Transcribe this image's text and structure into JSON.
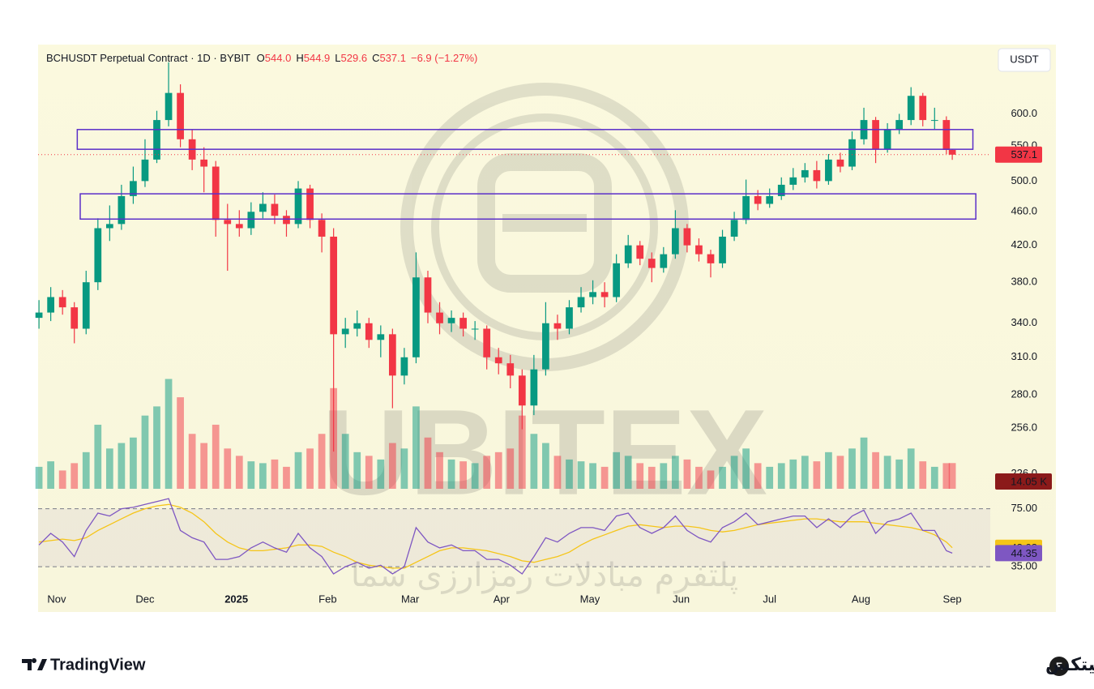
{
  "chart_data": {
    "type": "candlestick",
    "legend": {
      "symbol": "BCHUSDT Perpetual Contract · 1D · BYBIT",
      "fields": [
        {
          "label": "O",
          "value": "544.0"
        },
        {
          "label": "H",
          "value": "544.9"
        },
        {
          "label": "L",
          "value": "529.6"
        },
        {
          "label": "C",
          "value": "537.1"
        }
      ],
      "change": "−6.9 (−1.27%)"
    },
    "currency_button": "USDT",
    "log_scale": true,
    "up_color": "#089981",
    "down_color": "#f23645",
    "zone_color": "#5b2fc9",
    "rsi_color": "#7e57c2",
    "rsi_ma_color": "#f5c518",
    "xlim": [
      -6.3,
      316.9
    ],
    "xticks": [
      {
        "value": 0,
        "label": "Nov"
      },
      {
        "value": 30,
        "label": "Dec"
      },
      {
        "value": 61,
        "label": "2025"
      },
      {
        "value": 92,
        "label": "Feb"
      },
      {
        "value": 120,
        "label": "Mar"
      },
      {
        "value": 151,
        "label": "Apr"
      },
      {
        "value": 181,
        "label": "May"
      },
      {
        "value": 212,
        "label": "Jun"
      },
      {
        "value": 242,
        "label": "Jul"
      },
      {
        "value": 273,
        "label": "Aug"
      },
      {
        "value": 304,
        "label": "Sep"
      }
    ],
    "ylim": [
      217,
      724
    ],
    "yticks": [
      {
        "value": 600,
        "label": "600.0"
      },
      {
        "value": 550,
        "label": "550.0"
      },
      {
        "value": 500,
        "label": "500.0"
      },
      {
        "value": 460,
        "label": "460.0"
      },
      {
        "value": 420,
        "label": "420.0"
      },
      {
        "value": 380,
        "label": "380.0"
      },
      {
        "value": 340,
        "label": "340.0"
      },
      {
        "value": 310,
        "label": "310.0"
      },
      {
        "value": 280,
        "label": "280.0"
      },
      {
        "value": 256,
        "label": "256.0"
      },
      {
        "value": 226,
        "label": "226.0"
      }
    ],
    "volume_ylim": [
      0,
      62
    ],
    "rsi_ylim": [
      30,
      86
    ],
    "rsi_yticks": [
      {
        "value": 75,
        "label": "75.00"
      },
      {
        "value": 35,
        "label": "35.00"
      }
    ],
    "zones": [
      {
        "x": [
          7,
          311
        ],
        "y": [
          545,
          575
        ]
      },
      {
        "x": [
          8,
          312
        ],
        "y": [
          451,
          483
        ]
      }
    ],
    "candles": {
      "x": [
        -6,
        -2,
        2,
        6,
        10,
        14,
        18,
        22,
        26,
        30,
        34,
        38,
        42,
        46,
        50,
        54,
        58,
        62,
        66,
        70,
        74,
        78,
        82,
        86,
        90,
        94,
        98,
        102,
        106,
        110,
        114,
        118,
        122,
        126,
        130,
        134,
        138,
        142,
        146,
        150,
        154,
        158,
        162,
        166,
        170,
        174,
        178,
        182,
        186,
        190,
        194,
        198,
        202,
        206,
        210,
        214,
        218,
        222,
        226,
        230,
        234,
        238,
        242,
        246,
        250,
        254,
        258,
        262,
        266,
        270,
        274,
        278,
        282,
        286,
        290,
        294,
        298,
        302,
        304
      ],
      "open": [
        345,
        350,
        365,
        355,
        335,
        380,
        440,
        445,
        480,
        500,
        530,
        590,
        635,
        560,
        530,
        520,
        450,
        445,
        440,
        460,
        470,
        455,
        445,
        490,
        450,
        430,
        330,
        335,
        340,
        325,
        330,
        295,
        310,
        385,
        350,
        340,
        345,
        335,
        335,
        310,
        305,
        295,
        272,
        300,
        340,
        335,
        355,
        365,
        370,
        365,
        400,
        420,
        405,
        395,
        410,
        440,
        420,
        410,
        400,
        430,
        450,
        480,
        470,
        480,
        495,
        505,
        515,
        500,
        530,
        520,
        560,
        590,
        545,
        575,
        590,
        630,
        590,
        590,
        544
      ],
      "high": [
        362,
        375,
        372,
        360,
        392,
        452,
        468,
        495,
        520,
        560,
        605,
        690,
        650,
        575,
        548,
        528,
        470,
        462,
        472,
        485,
        482,
        462,
        500,
        495,
        458,
        440,
        345,
        352,
        345,
        338,
        335,
        318,
        412,
        392,
        360,
        352,
        350,
        342,
        338,
        318,
        312,
        300,
        312,
        360,
        348,
        362,
        375,
        382,
        380,
        410,
        432,
        425,
        412,
        418,
        462,
        445,
        428,
        415,
        438,
        460,
        502,
        488,
        490,
        505,
        518,
        525,
        528,
        538,
        540,
        572,
        610,
        595,
        585,
        600,
        645,
        635,
        610,
        596,
        544.9
      ],
      "low": [
        335,
        342,
        348,
        322,
        330,
        372,
        425,
        438,
        470,
        492,
        525,
        580,
        548,
        515,
        485,
        430,
        392,
        430,
        432,
        452,
        445,
        430,
        440,
        440,
        412,
        240,
        318,
        328,
        318,
        310,
        270,
        288,
        305,
        340,
        330,
        332,
        328,
        325,
        300,
        296,
        285,
        255,
        265,
        295,
        325,
        330,
        350,
        358,
        355,
        360,
        395,
        398,
        380,
        390,
        405,
        412,
        402,
        385,
        395,
        425,
        445,
        462,
        465,
        475,
        488,
        498,
        490,
        495,
        512,
        515,
        552,
        525,
        540,
        568,
        582,
        580,
        575,
        538,
        529.6
      ],
      "close": [
        350,
        365,
        355,
        335,
        380,
        440,
        445,
        480,
        500,
        530,
        590,
        635,
        560,
        530,
        520,
        450,
        445,
        440,
        460,
        470,
        455,
        445,
        490,
        450,
        430,
        330,
        335,
        340,
        325,
        330,
        295,
        310,
        385,
        350,
        340,
        345,
        335,
        335,
        310,
        305,
        295,
        272,
        300,
        340,
        335,
        355,
        365,
        370,
        365,
        400,
        420,
        405,
        395,
        410,
        440,
        420,
        410,
        400,
        430,
        450,
        480,
        470,
        480,
        495,
        505,
        515,
        500,
        530,
        520,
        560,
        590,
        545,
        575,
        590,
        630,
        590,
        590,
        544,
        537.1
      ],
      "volume": [
        12,
        15,
        10,
        14,
        20,
        35,
        22,
        25,
        28,
        40,
        45,
        60,
        50,
        30,
        25,
        35,
        22,
        18,
        15,
        14,
        16,
        12,
        20,
        22,
        30,
        55,
        30,
        20,
        18,
        16,
        25,
        22,
        45,
        28,
        20,
        16,
        15,
        14,
        18,
        20,
        22,
        40,
        30,
        25,
        18,
        16,
        15,
        14,
        12,
        20,
        18,
        14,
        12,
        14,
        18,
        16,
        12,
        10,
        12,
        18,
        22,
        14,
        12,
        14,
        16,
        18,
        15,
        20,
        18,
        22,
        28,
        20,
        18,
        16,
        22,
        15,
        12,
        14,
        14.05
      ],
      "volume_value_labels_last": "14.05 K",
      "rsi": [
        50,
        58,
        52,
        42,
        60,
        72,
        70,
        75,
        76,
        78,
        80,
        82,
        60,
        55,
        52,
        40,
        40,
        42,
        48,
        52,
        48,
        45,
        58,
        48,
        42,
        30,
        35,
        38,
        34,
        36,
        30,
        35,
        62,
        52,
        48,
        50,
        46,
        46,
        40,
        40,
        36,
        30,
        42,
        55,
        52,
        58,
        62,
        62,
        60,
        70,
        72,
        62,
        58,
        62,
        70,
        60,
        55,
        52,
        62,
        66,
        72,
        64,
        66,
        68,
        70,
        70,
        62,
        68,
        62,
        70,
        74,
        58,
        66,
        68,
        72,
        60,
        60,
        46,
        44.35
      ],
      "rsi_ma": [
        52,
        53,
        54,
        53,
        55,
        60,
        64,
        68,
        72,
        75,
        77,
        78,
        76,
        72,
        66,
        58,
        52,
        48,
        46,
        46,
        47,
        48,
        50,
        50,
        49,
        45,
        42,
        38,
        36,
        35,
        34,
        34,
        38,
        42,
        46,
        48,
        48,
        47,
        46,
        44,
        42,
        39,
        38,
        40,
        42,
        45,
        50,
        54,
        57,
        60,
        63,
        64,
        63,
        62,
        63,
        63,
        62,
        60,
        59,
        60,
        62,
        64,
        65,
        66,
        67,
        68,
        68,
        67,
        66,
        66,
        66,
        65,
        64,
        63,
        62,
        60,
        57,
        52,
        48.08
      ]
    }
  },
  "branding": {
    "watermark": "UBITEX",
    "watermark_fa": "پلتفرم مبادلات رمزارزی شما",
    "platform": "TradingView",
    "brand": "یوبیتکس"
  }
}
